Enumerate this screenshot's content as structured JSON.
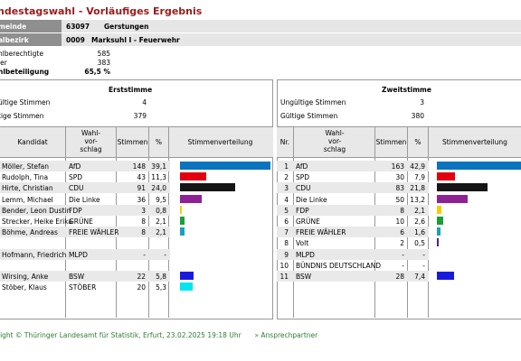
{
  "title": "ndestagswahl - Vorläufiges Ergebnis",
  "header": {
    "gemeinde_label": "meinde",
    "gemeinde_code": "63097",
    "gemeinde_name": "Gerstungen",
    "bezirk_label": "albezirk",
    "bezirk_code": "0009",
    "bezirk_name": "Marksuhl I - Feuerwehr"
  },
  "stats": [
    {
      "label": "hlberechtigte",
      "value": "585"
    },
    {
      "label": "ler",
      "value": "383"
    },
    {
      "label": "hlbeteiligung",
      "value": "65,5 %"
    }
  ],
  "erst": {
    "title": "Erststimme",
    "ungueltig_label": "ültige Stimmen",
    "ungueltig_value": "4",
    "gueltig_label": "tige Stimmen",
    "gueltig_value": "379",
    "col_kandidat": "Kandidat",
    "col_wahlvorschlag": [
      "Wahl-",
      "vor-",
      "schlag"
    ],
    "col_stimmen": "Stimmen",
    "col_percent": "%",
    "col_verteilung": "Stimmenverteilung",
    "rows": [
      {
        "name": "Möller, Stefan",
        "party": "AfD",
        "votes": "148",
        "pct": "39,1",
        "pctnum": 39.1,
        "color": "#0a74bf",
        "shade": true
      },
      {
        "name": "Rudolph, Tina",
        "party": "SPD",
        "votes": "43",
        "pct": "11,3",
        "pctnum": 11.3,
        "color": "#e3000f",
        "shade": false
      },
      {
        "name": "Hirte, Christian",
        "party": "CDU",
        "votes": "91",
        "pct": "24,0",
        "pctnum": 24.0,
        "color": "#151515",
        "shade": true
      },
      {
        "name": "Lemm, Michael",
        "party": "Die Linke",
        "votes": "36",
        "pct": "9,5",
        "pctnum": 9.5,
        "color": "#8e2295",
        "shade": false
      },
      {
        "name": "Bender, Leon Dustin",
        "party": "FDP",
        "votes": "3",
        "pct": "0,8",
        "pctnum": 0.8,
        "color": "#f3cf00",
        "shade": true
      },
      {
        "name": "Strecker, Heike Erika",
        "party": "GRÜNE",
        "votes": "8",
        "pct": "2,1",
        "pctnum": 2.1,
        "color": "#1aa037",
        "shade": false
      },
      {
        "name": "Böhme, Andreas",
        "party": "FREIE WÄHLER",
        "votes": "8",
        "pct": "2,1",
        "pctnum": 2.1,
        "color": "#1aa0b8",
        "shade": true
      },
      {
        "name": "",
        "party": "",
        "votes": "",
        "pct": "",
        "pctnum": 0,
        "color": "#ffffff",
        "shade": false
      },
      {
        "name": "Hofmann, Friedrich",
        "party": "MLPD",
        "votes": "-",
        "pct": "-",
        "pctnum": 0,
        "color": "#ffffff",
        "shade": true
      },
      {
        "name": "",
        "party": "",
        "votes": "",
        "pct": "",
        "pctnum": 0,
        "color": "#ffffff",
        "shade": false
      },
      {
        "name": "Wirsing, Anke",
        "party": "BSW",
        "votes": "22",
        "pct": "5,8",
        "pctnum": 5.8,
        "color": "#1a1adf",
        "shade": true
      },
      {
        "name": "Stöber, Klaus",
        "party": "STÖBER",
        "votes": "20",
        "pct": "5,3",
        "pctnum": 5.3,
        "color": "#00e5ee",
        "shade": false
      }
    ]
  },
  "zweit": {
    "title": "Zweitstimme",
    "ungueltig_label": "Ungültige Stimmen",
    "ungueltig_value": "3",
    "gueltig_label": "Gültige Stimmen",
    "gueltig_value": "380",
    "col_nr": "Nr.",
    "col_wahlvorschlag": [
      "Wahl-",
      "vor-",
      "schlag"
    ],
    "col_stimmen": "Stimmen",
    "col_percent": "%",
    "col_verteilung": "Stimmenverteilung",
    "rows": [
      {
        "nr": "1",
        "party": "AfD",
        "votes": "163",
        "pct": "42,9",
        "pctnum": 42.9,
        "color": "#0a74bf",
        "shade": true
      },
      {
        "nr": "2",
        "party": "SPD",
        "votes": "30",
        "pct": "7,9",
        "pctnum": 7.9,
        "color": "#e3000f",
        "shade": false
      },
      {
        "nr": "3",
        "party": "CDU",
        "votes": "83",
        "pct": "21,8",
        "pctnum": 21.8,
        "color": "#151515",
        "shade": true
      },
      {
        "nr": "4",
        "party": "Die Linke",
        "votes": "50",
        "pct": "13,2",
        "pctnum": 13.2,
        "color": "#8e2295",
        "shade": false
      },
      {
        "nr": "5",
        "party": "FDP",
        "votes": "8",
        "pct": "2,1",
        "pctnum": 2.1,
        "color": "#f3cf00",
        "shade": true
      },
      {
        "nr": "6",
        "party": "GRÜNE",
        "votes": "10",
        "pct": "2,6",
        "pctnum": 2.6,
        "color": "#1aa037",
        "shade": false
      },
      {
        "nr": "7",
        "party": "FREIE WÄHLER",
        "votes": "6",
        "pct": "1,6",
        "pctnum": 1.6,
        "color": "#1aa0b8",
        "shade": true
      },
      {
        "nr": "8",
        "party": "Volt",
        "votes": "2",
        "pct": "0,5",
        "pctnum": 0.5,
        "color": "#502379",
        "shade": false
      },
      {
        "nr": "9",
        "party": "MLPD",
        "votes": "-",
        "pct": "-",
        "pctnum": 0,
        "color": "#ffffff",
        "shade": true
      },
      {
        "nr": "10",
        "party": "BÜNDNIS DEUTSCHLAND",
        "votes": "-",
        "pct": "-",
        "pctnum": 0,
        "color": "#ffffff",
        "shade": false
      },
      {
        "nr": "11",
        "party": "BSW",
        "votes": "28",
        "pct": "7,4",
        "pctnum": 7.4,
        "color": "#1a1adf",
        "shade": true
      }
    ]
  },
  "footer": {
    "copyright": "right © Thüringer Landesamt für Statistik, Erfurt, 23.02.2025 19:18 Uhr",
    "link": "» Ansprechpartner"
  }
}
